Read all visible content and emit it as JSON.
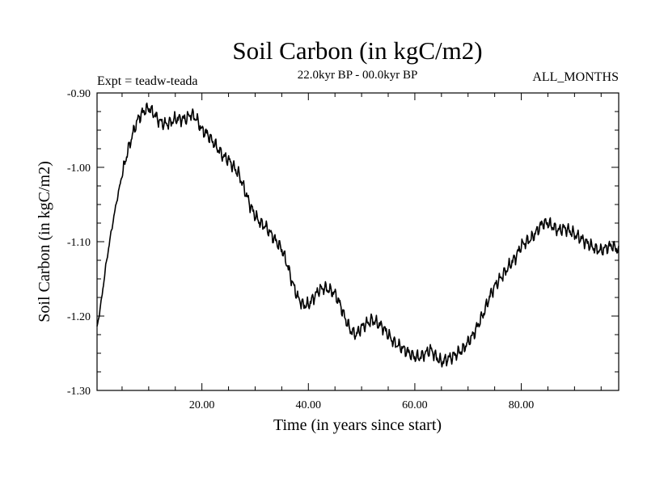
{
  "chart_data": {
    "type": "line",
    "title": "Soil Carbon (in kgC/m2)",
    "subtitle": "22.0kyr BP - 00.0kyr BP",
    "left_annotation": "Expt = teadw-teada",
    "right_annotation": "ALL_MONTHS",
    "xlabel": "Time (in years since start)",
    "ylabel": "Soil Carbon (in kgC/m2)",
    "xlim": [
      0.3,
      98.3
    ],
    "ylim": [
      -1.3,
      -0.9
    ],
    "x_ticks": [
      20,
      40,
      60,
      80
    ],
    "x_tick_labels": [
      "20.00",
      "40.00",
      "60.00",
      "80.00"
    ],
    "y_ticks": [
      -1.3,
      -1.2,
      -1.1,
      -1.0,
      -0.9
    ],
    "y_tick_labels": [
      "-1.30",
      "-1.20",
      "-1.10",
      "-1.00",
      "-0.90"
    ],
    "x_minor_step": 5,
    "y_minor_step": 0.025,
    "grid": false,
    "series": [
      {
        "name": "Soil Carbon",
        "color": "#000000",
        "x": [
          0.3,
          1,
          2,
          3,
          4,
          5,
          6,
          7,
          8,
          9,
          10,
          11,
          12,
          13,
          14,
          15,
          16,
          17,
          18,
          19,
          20,
          21,
          22,
          23,
          24,
          25,
          26,
          27,
          28,
          29,
          30,
          31,
          32,
          33,
          34,
          35,
          36,
          37,
          38,
          39,
          40,
          41,
          42,
          43,
          44,
          45,
          46,
          47,
          48,
          49,
          50,
          51,
          52,
          53,
          54,
          55,
          56,
          57,
          58,
          59,
          60,
          61,
          62,
          63,
          64,
          65,
          66,
          67,
          68,
          69,
          70,
          71,
          72,
          73,
          74,
          75,
          76,
          77,
          78,
          79,
          80,
          81,
          82,
          83,
          84,
          85,
          86,
          87,
          88,
          89,
          90,
          91,
          92,
          93,
          94,
          95,
          96,
          97,
          98,
          98.3
        ],
        "y": [
          -1.215,
          -1.185,
          -1.13,
          -1.085,
          -1.045,
          -1.01,
          -0.98,
          -0.955,
          -0.935,
          -0.925,
          -0.92,
          -0.928,
          -0.938,
          -0.942,
          -0.94,
          -0.935,
          -0.935,
          -0.935,
          -0.928,
          -0.935,
          -0.95,
          -0.955,
          -0.965,
          -0.975,
          -0.985,
          -0.99,
          -1.0,
          -1.01,
          -1.03,
          -1.05,
          -1.065,
          -1.075,
          -1.08,
          -1.09,
          -1.1,
          -1.11,
          -1.13,
          -1.155,
          -1.175,
          -1.185,
          -1.185,
          -1.175,
          -1.165,
          -1.162,
          -1.165,
          -1.17,
          -1.185,
          -1.205,
          -1.22,
          -1.225,
          -1.215,
          -1.21,
          -1.205,
          -1.21,
          -1.215,
          -1.225,
          -1.235,
          -1.24,
          -1.245,
          -1.25,
          -1.255,
          -1.255,
          -1.25,
          -1.245,
          -1.255,
          -1.262,
          -1.258,
          -1.255,
          -1.25,
          -1.245,
          -1.235,
          -1.225,
          -1.21,
          -1.195,
          -1.175,
          -1.16,
          -1.15,
          -1.14,
          -1.13,
          -1.12,
          -1.105,
          -1.1,
          -1.095,
          -1.085,
          -1.075,
          -1.075,
          -1.08,
          -1.085,
          -1.082,
          -1.085,
          -1.09,
          -1.095,
          -1.1,
          -1.105,
          -1.11,
          -1.112,
          -1.108,
          -1.105,
          -1.11,
          -1.112
        ]
      }
    ]
  }
}
